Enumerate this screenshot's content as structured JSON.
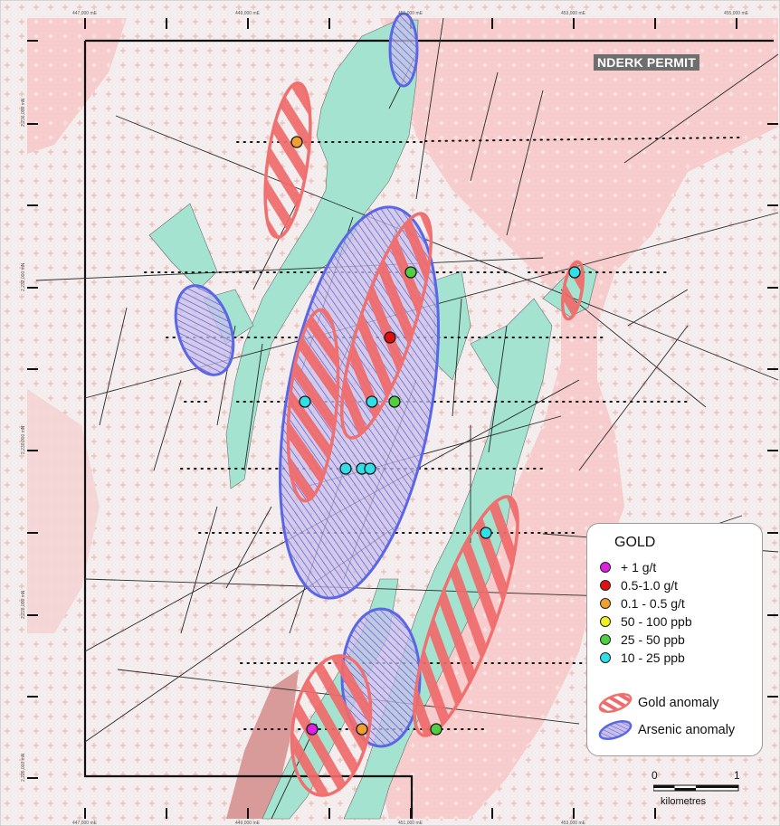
{
  "permit_label": "NDERK PERMIT",
  "coords": {
    "top": [
      "447,000 mE",
      "449,000 mE",
      "451,000 mE",
      "453,000 mE",
      "455,000 mE"
    ],
    "bottom": [
      "447,000 mE",
      "449,000 mE",
      "451,000 mE",
      "453,000 mE"
    ],
    "left": [
      "2,236,000 mN",
      "2,232,000 mN",
      "2,230,000 mN",
      "2,228,000 mN",
      "2,226,000 mN"
    ]
  },
  "legend": {
    "title": "GOLD",
    "items": [
      {
        "label": "+ 1 g/t",
        "color": "#e020e0"
      },
      {
        "label": "0.5-1.0 g/t",
        "color": "#e01010"
      },
      {
        "label": "0.1 - 0.5 g/t",
        "color": "#f0a030"
      },
      {
        "label": "50 - 100 ppb",
        "color": "#f0f020"
      },
      {
        "label": "25 - 50 ppb",
        "color": "#50d040"
      },
      {
        "label": "10 - 25 ppb",
        "color": "#30e0e8"
      }
    ],
    "gold_anomaly": "Gold anomaly",
    "arsenic_anomaly": "Arsenic anomaly"
  },
  "scale": {
    "zero": "0",
    "one": "1",
    "unit": "kilometres"
  },
  "colors": {
    "gold_anomaly": "#f07070",
    "arsenic_anomaly": "#5060e0",
    "greenstone": "#9ee0cc",
    "granite_pink": "#f7c8c8",
    "background": "#f2eeee"
  }
}
